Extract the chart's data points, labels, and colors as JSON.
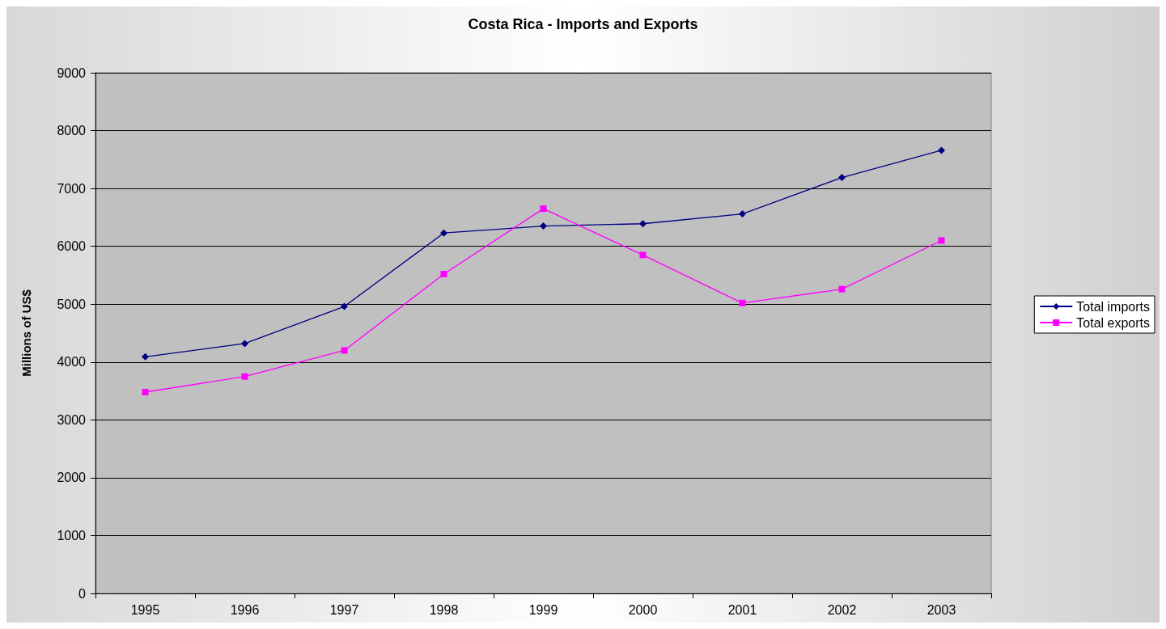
{
  "chart_data": {
    "type": "line",
    "title": "Costa Rica - Imports and Exports",
    "ylabel": "Millions of US$",
    "categories": [
      "1995",
      "1996",
      "1997",
      "1998",
      "1999",
      "2000",
      "2001",
      "2002",
      "2003"
    ],
    "series": [
      {
        "name": "Total imports",
        "color": "#000080",
        "marker": "diamond",
        "values": [
          4090,
          4320,
          4960,
          6230,
          6350,
          6390,
          6560,
          7190,
          7660
        ]
      },
      {
        "name": "Total exports",
        "color": "#ff00ff",
        "marker": "square",
        "values": [
          3480,
          3750,
          4200,
          5520,
          6650,
          5850,
          5020,
          5260,
          6100
        ]
      }
    ],
    "ylim": [
      0,
      9000
    ],
    "yticks": [
      0,
      1000,
      2000,
      3000,
      4000,
      5000,
      6000,
      7000,
      8000,
      9000
    ],
    "grid": "y",
    "legend": "right",
    "line_style": "solid"
  }
}
